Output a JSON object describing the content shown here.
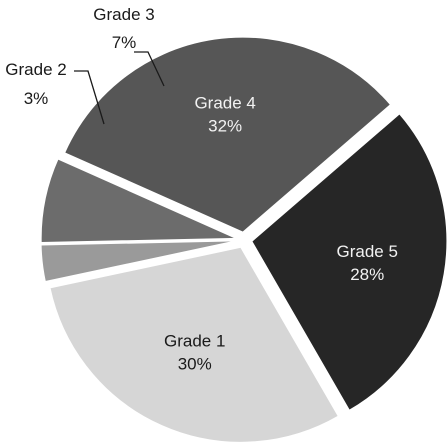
{
  "chart_data": {
    "type": "pie",
    "slices": [
      {
        "name": "Grade 4",
        "value": 32,
        "value_label": "32%",
        "color": "#565656",
        "label_color": "#f2f2f2"
      },
      {
        "name": "Grade 5",
        "value": 28,
        "value_label": "28%",
        "color": "#262626",
        "label_color": "#f2f2f2"
      },
      {
        "name": "Grade 1",
        "value": 30,
        "value_label": "30%",
        "color": "#d6d6d6",
        "label_color": "#1a1a1a"
      },
      {
        "name": "Grade 2",
        "value": 3,
        "value_label": "3%",
        "color": "#9a9a9a",
        "label_color": "#1a1a1a"
      },
      {
        "name": "Grade 3",
        "value": 7,
        "value_label": "7%",
        "color": "#6c6c6c",
        "label_color": "#1a1a1a"
      }
    ],
    "exploded": true,
    "labels_outside_for_small_slices": [
      "Grade 2",
      "Grade 3"
    ]
  }
}
